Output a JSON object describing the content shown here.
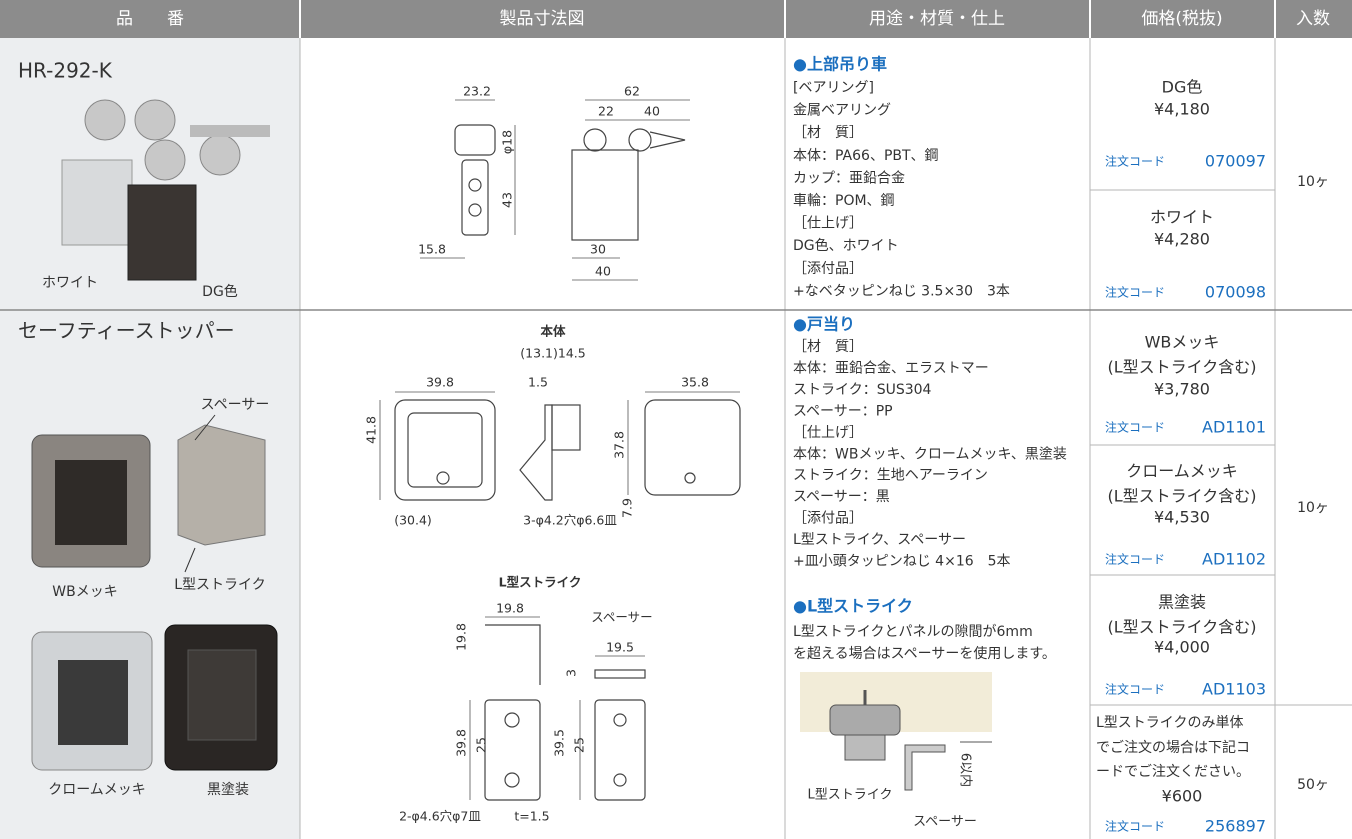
{
  "header": [
    "品　　番",
    "製品寸法図",
    "用途・材質・仕上",
    "価格(税抜)",
    "入数"
  ],
  "products": [
    {
      "name": "HR-292-K",
      "photo_labels": [
        "ホワイト",
        "DG色"
      ],
      "drawing_labels": [
        "23.2",
        "62",
        "22",
        "40",
        "φ18",
        "43",
        "15.8",
        "30",
        "40"
      ],
      "usage": [
        {
          "heading": "●上部吊り車",
          "lines": [
            "[ベアリング]",
            "金属ベアリング",
            "［材　質］",
            "本体：PA66、PBT、鋼",
            "カップ：亜鉛合金",
            "車輪：POM、鋼",
            "［仕上げ］",
            "DG色、ホワイト",
            "［添付品］",
            "+なベタッピンねじ 3.5×30　3本"
          ]
        }
      ],
      "diagram_labels": [],
      "prices": [
        {
          "lines": [
            "DG色",
            "¥4,180"
          ],
          "code_label": "注文コード",
          "code": "070097"
        },
        {
          "lines": [
            "ホワイト",
            "¥4,280"
          ],
          "code_label": "注文コード",
          "code": "070098"
        }
      ],
      "quantities": [
        "10ヶ"
      ]
    },
    {
      "name": "セーフティーストッパー",
      "photo_labels": [
        "スペーサー",
        "WBメッキ",
        "L型ストライク",
        "クロームメッキ",
        "黒塗装"
      ],
      "drawing_labels": [
        "本体",
        "(13.1)14.5",
        "39.8",
        "1.5",
        "35.8",
        "41.8",
        "37.8",
        "(30.4)",
        "3-φ4.2穴φ6.6皿",
        "7.9",
        "L型ストライク",
        "19.8",
        "スペーサー",
        "19.8",
        "19.5",
        "3",
        "39.8",
        "25",
        "39.5",
        "25",
        "2-φ4.6穴φ7皿",
        "t=1.5"
      ],
      "usage": [
        {
          "heading": "●戸当り",
          "lines": [
            "［材　質］",
            "本体：亜鉛合金、エラストマー",
            "ストライク：SUS304",
            "スペーサー：PP",
            "［仕上げ］",
            "本体：WBメッキ、クロームメッキ、黒塗装",
            "ストライク：生地ヘアーライン",
            "スペーサー：黒",
            "［添付品］",
            "L型ストライク、スペーサー",
            "+皿小頭タッピンねじ 4×16　5本"
          ]
        },
        {
          "heading": "●L型ストライク",
          "lines": [
            "L型ストライクとパネルの隙間が6mm",
            "を超える場合はスペーサーを使用します。"
          ]
        }
      ],
      "diagram_labels": [
        "L型ストライク",
        "スペーサー",
        "6以内"
      ],
      "prices": [
        {
          "lines": [
            "WBメッキ",
            "(L型ストライク含む)",
            "¥3,780"
          ],
          "code_label": "注文コード",
          "code": "AD1101"
        },
        {
          "lines": [
            "クロームメッキ",
            "(L型ストライク含む)",
            "¥4,530"
          ],
          "code_label": "注文コード",
          "code": "AD1102"
        },
        {
          "lines": [
            "黒塗装",
            "(L型ストライク含む)",
            "¥4,000"
          ],
          "code_label": "注文コード",
          "code": "AD1103"
        },
        {
          "lines": [
            "L型ストライクのみ単体",
            "でご注文の場合は下記コ",
            "ードでご注文ください。",
            "¥600"
          ],
          "code_label": "注文コード",
          "code": "256897"
        }
      ],
      "quantities": [
        "10ヶ",
        "50ヶ"
      ]
    }
  ]
}
